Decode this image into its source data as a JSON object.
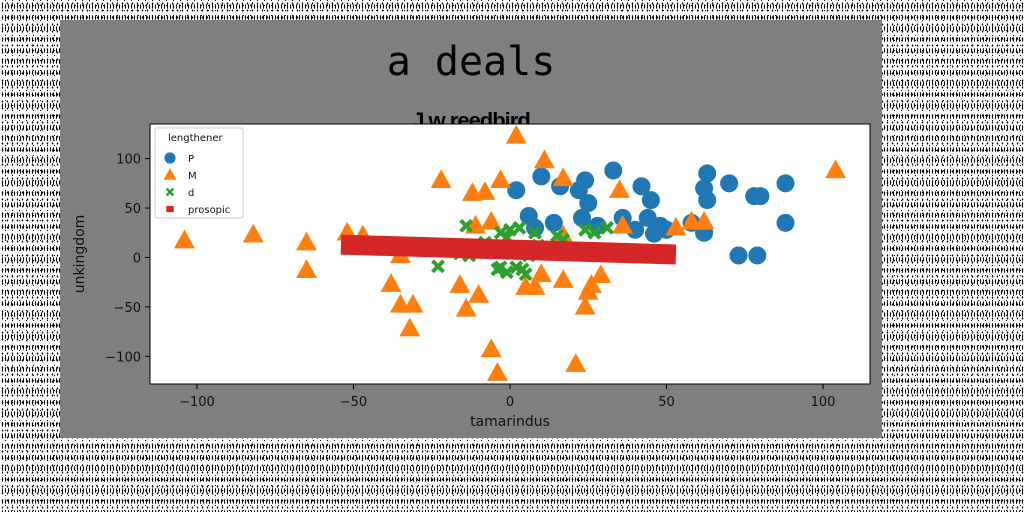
{
  "title": "a deals",
  "subtitle": "J w reedbird",
  "chart_data": {
    "type": "scatter",
    "title": "J w reedbird",
    "xlabel": "tamarindus",
    "ylabel": "unkingdom",
    "xlim": [
      -115,
      115
    ],
    "ylim": [
      -128,
      135
    ],
    "xticks": [
      -100,
      -50,
      0,
      50,
      100
    ],
    "xtick_labels": [
      "−100",
      "−50",
      "0",
      "50",
      "100"
    ],
    "yticks": [
      -100,
      -50,
      0,
      50,
      100
    ],
    "ytick_labels": [
      "−100",
      "−50",
      "0",
      "50",
      "100"
    ],
    "grid": false,
    "legend": {
      "title": "lengthener",
      "position": "top-left"
    },
    "colors": {
      "P": "#1f77b4",
      "M": "#ff7f0e",
      "d": "#2ca02c",
      "prosopic": "#d62728"
    },
    "series": [
      {
        "name": "P",
        "marker": "circle",
        "points": [
          [
            2,
            68
          ],
          [
            10,
            82
          ],
          [
            16,
            72
          ],
          [
            22,
            68
          ],
          [
            24,
            78
          ],
          [
            25,
            55
          ],
          [
            23,
            40
          ],
          [
            28,
            32
          ],
          [
            33,
            88
          ],
          [
            42,
            72
          ],
          [
            45,
            58
          ],
          [
            44,
            40
          ],
          [
            48,
            32
          ],
          [
            50,
            28
          ],
          [
            58,
            35
          ],
          [
            62,
            70
          ],
          [
            63,
            58
          ],
          [
            62,
            25
          ],
          [
            63,
            85
          ],
          [
            70,
            75
          ],
          [
            78,
            62
          ],
          [
            80,
            62
          ],
          [
            88,
            75
          ],
          [
            88,
            35
          ],
          [
            73,
            2
          ],
          [
            79,
            2
          ],
          [
            6,
            42
          ],
          [
            8,
            30
          ],
          [
            14,
            35
          ],
          [
            36,
            40
          ],
          [
            40,
            28
          ],
          [
            46,
            24
          ]
        ]
      },
      {
        "name": "M",
        "marker": "triangle",
        "points": [
          [
            -104,
            17
          ],
          [
            -82,
            23
          ],
          [
            -65,
            15
          ],
          [
            -65,
            -13
          ],
          [
            -52,
            25
          ],
          [
            -47,
            22
          ],
          [
            -35,
            2
          ],
          [
            -38,
            -27
          ],
          [
            -35,
            -48
          ],
          [
            -31,
            -48
          ],
          [
            -32,
            -72
          ],
          [
            -22,
            78
          ],
          [
            -16,
            -28
          ],
          [
            -14,
            -52
          ],
          [
            -10,
            -38
          ],
          [
            -11,
            32
          ],
          [
            -12,
            65
          ],
          [
            -8,
            66
          ],
          [
            -6,
            36
          ],
          [
            -3,
            78
          ],
          [
            2,
            123
          ],
          [
            5,
            -30
          ],
          [
            8,
            -30
          ],
          [
            10,
            -17
          ],
          [
            11,
            98
          ],
          [
            17,
            80
          ],
          [
            17,
            -23
          ],
          [
            17,
            22
          ],
          [
            21,
            -108
          ],
          [
            24,
            -50
          ],
          [
            25,
            -35
          ],
          [
            26,
            -28
          ],
          [
            29,
            -18
          ],
          [
            35,
            68
          ],
          [
            36,
            32
          ],
          [
            53,
            30
          ],
          [
            58,
            36
          ],
          [
            62,
            36
          ],
          [
            104,
            88
          ],
          [
            -6,
            -93
          ],
          [
            -4,
            -117
          ]
        ]
      },
      {
        "name": "d",
        "marker": "x",
        "points": [
          [
            -23,
            -9
          ],
          [
            -14,
            32
          ],
          [
            -16,
            4
          ],
          [
            -13,
            2
          ],
          [
            -4,
            -12
          ],
          [
            -3,
            -10
          ],
          [
            -3,
            25
          ],
          [
            0,
            28
          ],
          [
            -1,
            20
          ],
          [
            3,
            30
          ],
          [
            2,
            -10
          ],
          [
            4,
            -12
          ],
          [
            5,
            -17
          ],
          [
            -1,
            -15
          ],
          [
            8,
            25
          ],
          [
            9,
            12
          ],
          [
            15,
            22
          ],
          [
            17,
            18
          ],
          [
            24,
            28
          ],
          [
            27,
            25
          ],
          [
            31,
            30
          ],
          [
            2,
            8
          ],
          [
            6,
            2
          ],
          [
            -8,
            15
          ],
          [
            12,
            5
          ]
        ]
      },
      {
        "name": "prosopic",
        "marker": "line",
        "points": [
          [
            -54,
            13
          ],
          [
            53,
            3
          ]
        ]
      }
    ]
  }
}
